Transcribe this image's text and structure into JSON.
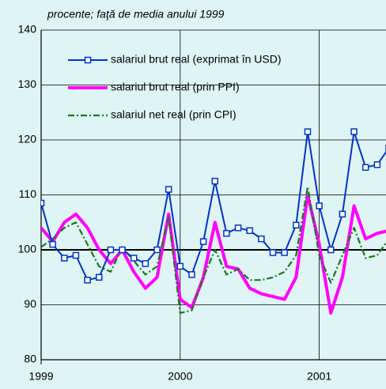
{
  "chart_data": {
    "type": "line",
    "subtitle": "procente; faţă de media anului 1999",
    "x": [
      1999,
      1999.0833,
      1999.1667,
      1999.25,
      1999.3333,
      1999.4167,
      1999.5,
      1999.5833,
      1999.6667,
      1999.75,
      1999.8333,
      1999.9167,
      2000,
      2000.0833,
      2000.1667,
      2000.25,
      2000.3333,
      2000.4167,
      2000.5,
      2000.5833,
      2000.6667,
      2000.75,
      2000.8333,
      2000.9167,
      2001,
      2001.0833,
      2001.1667,
      2001.25,
      2001.3333,
      2001.4167,
      2001.5
    ],
    "series": [
      {
        "name": "salariul brut real (exprimat în USD)",
        "color": "#0033cc",
        "style": "marker",
        "values": [
          108.5,
          101,
          98.5,
          99,
          94.5,
          95,
          100,
          100,
          98.5,
          97.5,
          100,
          111,
          97,
          95.5,
          101.5,
          112.5,
          103,
          104,
          103.5,
          102,
          99.5,
          99.5,
          104.5,
          121.5,
          108,
          100,
          106.5,
          121.5,
          115,
          115.5,
          118.5
        ]
      },
      {
        "name": "salariul brut real (prin PPI)",
        "color": "#ff00ff",
        "style": "thick",
        "values": [
          104,
          101.5,
          105,
          106.5,
          104,
          100,
          97.5,
          100,
          96,
          93,
          95,
          106.5,
          91,
          89.5,
          95,
          105,
          97,
          96.5,
          93,
          92,
          91.5,
          91,
          95,
          110,
          101,
          88.5,
          95,
          108,
          102,
          103,
          103.5
        ]
      },
      {
        "name": "salariul net real (prin CPI)",
        "color": "#1a7a1a",
        "style": "dashdot",
        "values": [
          100.5,
          102,
          104,
          105,
          101,
          97,
          96,
          100.5,
          98,
          95.5,
          97,
          106,
          88.5,
          89,
          95,
          100,
          95.5,
          96.5,
          94.5,
          94.5,
          95,
          96,
          99,
          111.5,
          99,
          94,
          99,
          104,
          98.5,
          99,
          102
        ]
      }
    ],
    "xlim": [
      1999,
      2001.48
    ],
    "xticks": [
      1999,
      2000,
      2001
    ],
    "ylim": [
      80,
      140
    ],
    "yticks": [
      80,
      90,
      100,
      110,
      120,
      130,
      140
    ],
    "grid": true,
    "legend": "upper left"
  }
}
